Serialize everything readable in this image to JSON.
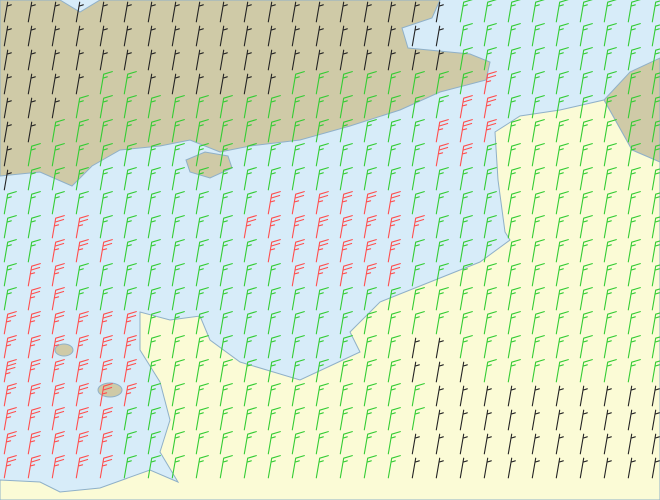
{
  "wind": {
    "direction_deg": 190,
    "thresholds": [
      10,
      20
    ],
    "colors": [
      "#222222",
      "#33cc33",
      "#ff4d4d"
    ],
    "speeds": [
      [
        5,
        5,
        5,
        5,
        5,
        5,
        5,
        5,
        5,
        5,
        5,
        5,
        5,
        5,
        5,
        5,
        5,
        5,
        5,
        15,
        15,
        15,
        15,
        15,
        15,
        15,
        15,
        15
      ],
      [
        5,
        5,
        5,
        5,
        5,
        5,
        5,
        5,
        5,
        5,
        5,
        5,
        5,
        5,
        5,
        5,
        5,
        5,
        5,
        15,
        15,
        15,
        15,
        15,
        15,
        15,
        15,
        15
      ],
      [
        5,
        5,
        5,
        5,
        5,
        5,
        5,
        5,
        5,
        5,
        5,
        5,
        5,
        5,
        5,
        5,
        5,
        5,
        5,
        15,
        15,
        15,
        15,
        15,
        15,
        15,
        15,
        15
      ],
      [
        5,
        5,
        5,
        5,
        15,
        15,
        5,
        5,
        5,
        5,
        5,
        5,
        15,
        15,
        15,
        15,
        15,
        15,
        15,
        15,
        25,
        15,
        15,
        15,
        15,
        15,
        15,
        15
      ],
      [
        5,
        5,
        5,
        15,
        15,
        15,
        15,
        15,
        15,
        15,
        15,
        15,
        15,
        15,
        15,
        15,
        15,
        15,
        15,
        25,
        25,
        15,
        15,
        15,
        15,
        15,
        15,
        15
      ],
      [
        5,
        5,
        15,
        15,
        15,
        15,
        15,
        15,
        15,
        15,
        15,
        15,
        15,
        15,
        15,
        15,
        15,
        15,
        25,
        25,
        25,
        15,
        15,
        15,
        15,
        15,
        15,
        15
      ],
      [
        5,
        15,
        15,
        15,
        15,
        15,
        15,
        15,
        15,
        15,
        15,
        15,
        15,
        15,
        15,
        15,
        15,
        15,
        25,
        25,
        15,
        15,
        15,
        15,
        15,
        15,
        15,
        15
      ],
      [
        5,
        15,
        15,
        15,
        15,
        15,
        15,
        15,
        15,
        15,
        15,
        15,
        15,
        15,
        15,
        15,
        15,
        15,
        15,
        15,
        15,
        15,
        15,
        15,
        15,
        15,
        15,
        15
      ],
      [
        15,
        15,
        15,
        15,
        15,
        15,
        15,
        15,
        15,
        15,
        15,
        25,
        25,
        25,
        25,
        25,
        25,
        15,
        15,
        15,
        15,
        15,
        15,
        15,
        15,
        15,
        15,
        15
      ],
      [
        15,
        15,
        25,
        25,
        15,
        15,
        15,
        15,
        15,
        15,
        25,
        25,
        25,
        25,
        25,
        25,
        25,
        25,
        15,
        15,
        15,
        15,
        15,
        15,
        15,
        15,
        15,
        15
      ],
      [
        15,
        15,
        25,
        25,
        25,
        15,
        15,
        15,
        15,
        15,
        15,
        25,
        25,
        25,
        25,
        25,
        25,
        15,
        15,
        15,
        15,
        15,
        15,
        15,
        15,
        15,
        15,
        15
      ],
      [
        15,
        25,
        25,
        15,
        15,
        15,
        15,
        15,
        15,
        15,
        15,
        15,
        25,
        25,
        25,
        25,
        25,
        15,
        15,
        15,
        15,
        15,
        15,
        15,
        15,
        15,
        15,
        15
      ],
      [
        15,
        25,
        25,
        15,
        15,
        15,
        15,
        15,
        15,
        15,
        15,
        15,
        15,
        15,
        15,
        15,
        15,
        15,
        15,
        15,
        15,
        15,
        15,
        15,
        15,
        15,
        15,
        15
      ],
      [
        25,
        25,
        25,
        25,
        25,
        25,
        15,
        15,
        15,
        15,
        15,
        15,
        15,
        15,
        15,
        15,
        15,
        15,
        15,
        15,
        15,
        15,
        15,
        15,
        15,
        15,
        15,
        15
      ],
      [
        25,
        25,
        25,
        25,
        25,
        25,
        15,
        15,
        15,
        15,
        15,
        15,
        15,
        15,
        15,
        15,
        15,
        5,
        5,
        15,
        15,
        15,
        15,
        15,
        15,
        15,
        15,
        15
      ],
      [
        35,
        25,
        25,
        25,
        25,
        25,
        15,
        15,
        15,
        15,
        15,
        15,
        15,
        15,
        15,
        15,
        15,
        5,
        5,
        5,
        15,
        15,
        15,
        15,
        15,
        15,
        15,
        15
      ],
      [
        25,
        25,
        25,
        25,
        25,
        25,
        15,
        15,
        15,
        15,
        15,
        15,
        15,
        15,
        15,
        15,
        15,
        15,
        5,
        5,
        5,
        5,
        5,
        5,
        5,
        5,
        5,
        5
      ],
      [
        25,
        25,
        25,
        25,
        25,
        15,
        15,
        15,
        15,
        15,
        15,
        15,
        15,
        15,
        15,
        15,
        15,
        15,
        5,
        5,
        5,
        5,
        5,
        5,
        5,
        5,
        5,
        5
      ],
      [
        25,
        25,
        25,
        25,
        25,
        15,
        15,
        15,
        15,
        15,
        15,
        15,
        15,
        15,
        15,
        15,
        15,
        5,
        5,
        5,
        5,
        5,
        5,
        5,
        5,
        5,
        5,
        5
      ],
      [
        25,
        25,
        25,
        25,
        25,
        15,
        15,
        15,
        15,
        15,
        15,
        15,
        15,
        15,
        15,
        15,
        15,
        5,
        5,
        5,
        5,
        5,
        5,
        5,
        5,
        5,
        5,
        5
      ]
    ]
  }
}
